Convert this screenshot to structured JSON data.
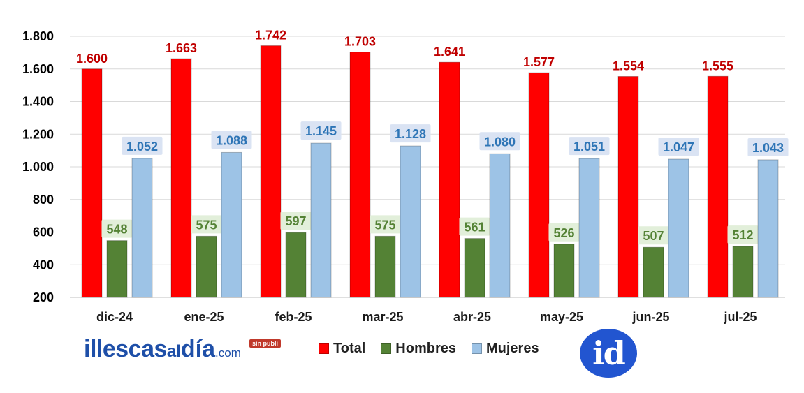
{
  "chart_data": {
    "type": "bar",
    "categories": [
      "dic-24",
      "ene-25",
      "feb-25",
      "mar-25",
      "abr-25",
      "may-25",
      "jun-25",
      "jul-25"
    ],
    "series": [
      {
        "name": "Total",
        "values": [
          1600,
          1663,
          1742,
          1703,
          1641,
          1577,
          1554,
          1555
        ],
        "labels": [
          "1.600",
          "1.663",
          "1.742",
          "1.703",
          "1.641",
          "1.577",
          "1.554",
          "1.555"
        ],
        "color": "#ff0000",
        "label_color": "#c00000"
      },
      {
        "name": "Hombres",
        "values": [
          548,
          575,
          597,
          575,
          561,
          526,
          507,
          512
        ],
        "labels": [
          "548",
          "575",
          "597",
          "575",
          "561",
          "526",
          "507",
          "512"
        ],
        "color": "#548235",
        "label_color": "#548235",
        "label_bg": "#e2efda"
      },
      {
        "name": "Mujeres",
        "values": [
          1052,
          1088,
          1145,
          1128,
          1080,
          1051,
          1047,
          1043
        ],
        "labels": [
          "1.052",
          "1.088",
          "1.145",
          "1.128",
          "1.080",
          "1.051",
          "1.047",
          "1.043"
        ],
        "color": "#9dc3e6",
        "label_color": "#2e75b6",
        "label_bg": "#dae3f3"
      }
    ],
    "yticks": [
      200,
      400,
      600,
      800,
      1000,
      1200,
      1400,
      1600,
      1800
    ],
    "ytick_labels": [
      "200",
      "400",
      "600",
      "800",
      "1.000",
      "1.200",
      "1.400",
      "1.600",
      "1.800"
    ],
    "ylim": [
      200,
      1800
    ],
    "grid": true,
    "legend_position": "bottom"
  },
  "legend": {
    "items": [
      {
        "label": "Total",
        "color": "#ff0000"
      },
      {
        "label": "Hombres",
        "color": "#548235"
      },
      {
        "label": "Mujeres",
        "color": "#9dc3e6"
      }
    ]
  },
  "branding": {
    "part1": "illescas",
    "part2": "al",
    "part3": "día",
    "part4": ".com",
    "tag": "sin publi",
    "logo_text": "id"
  }
}
